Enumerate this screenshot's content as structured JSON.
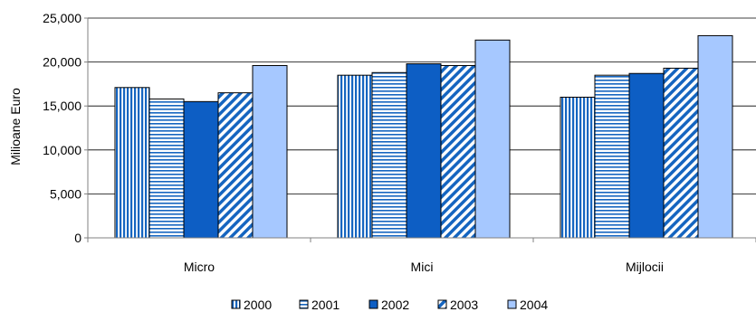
{
  "chart_data": {
    "type": "bar",
    "categories": [
      "Micro",
      "Mici",
      "Mijlocii"
    ],
    "series": [
      {
        "name": "2000",
        "values": [
          17100,
          18500,
          16000
        ],
        "color": "#1565c0",
        "pattern": "vertical-stripes"
      },
      {
        "name": "2001",
        "values": [
          15800,
          18800,
          18500
        ],
        "color": "#1565c0",
        "pattern": "horizontal-stripes"
      },
      {
        "name": "2002",
        "values": [
          15500,
          19800,
          18700
        ],
        "color": "#0d5ec4",
        "pattern": "solid"
      },
      {
        "name": "2003",
        "values": [
          16500,
          19600,
          19300
        ],
        "color": "#1565c0",
        "pattern": "diagonal-stripes"
      },
      {
        "name": "2004",
        "values": [
          19600,
          22500,
          23000
        ],
        "color": "#a6c8ff",
        "pattern": "solid"
      }
    ],
    "ylabel": "Milioane Euro",
    "ylim": [
      0,
      25000
    ],
    "yticks": [
      0,
      5000,
      10000,
      15000,
      20000,
      25000
    ],
    "ytick_labels": [
      "0",
      "5,000",
      "10,000",
      "15,000",
      "20,000",
      "25,000"
    ],
    "grid": true,
    "legend_position": "bottom"
  }
}
